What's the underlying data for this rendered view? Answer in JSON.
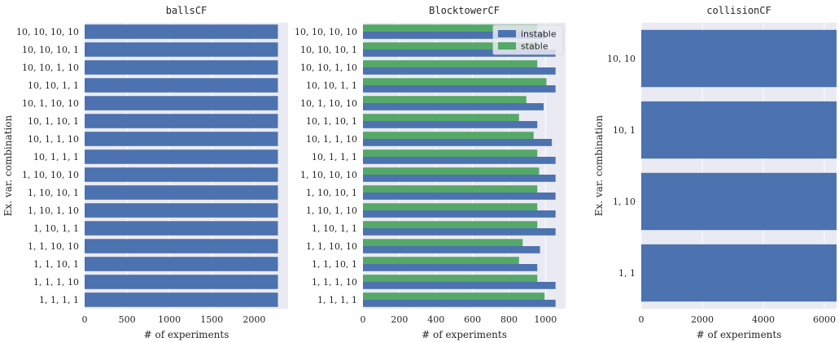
{
  "chart_data": [
    {
      "type": "bar",
      "orientation": "horizontal",
      "title": "ballsCF",
      "xlabel": "# of experiments",
      "ylabel": "Ex. var. combination",
      "categories": [
        "10, 10, 10, 10",
        "10, 10, 10, 1",
        "10, 10, 1, 10",
        "10, 10, 1, 1",
        "10, 1, 10, 10",
        "10, 1, 10, 1",
        "10, 1, 1, 10",
        "10, 1, 1, 1",
        "1, 10, 10, 10",
        "1, 10, 10, 1",
        "1, 10, 1, 10",
        "1, 10, 1, 1",
        "1, 1, 10, 10",
        "1, 1, 10, 1",
        "1, 1, 1, 10",
        "1, 1, 1, 1"
      ],
      "series": [
        {
          "values": [
            2280,
            2280,
            2280,
            2280,
            2280,
            2280,
            2280,
            2280,
            2280,
            2280,
            2280,
            2280,
            2280,
            2280,
            2280,
            2280
          ],
          "color": "#4c72b0"
        }
      ],
      "xticks": [
        0,
        500,
        1000,
        1500,
        2000
      ],
      "xlim": [
        0,
        2400
      ],
      "grid": true
    },
    {
      "type": "bar",
      "orientation": "horizontal",
      "title": "BlocktowerCF",
      "xlabel": "# of experiments",
      "ylabel": "",
      "categories": [
        "10, 10, 10, 10",
        "10, 10, 10, 1",
        "10, 10, 1, 10",
        "10, 10, 1, 1",
        "10, 1, 10, 10",
        "10, 1, 10, 1",
        "10, 1, 1, 10",
        "10, 1, 1, 1",
        "1, 10, 10, 10",
        "1, 10, 10, 1",
        "1, 10, 1, 10",
        "1, 10, 1, 1",
        "1, 1, 10, 10",
        "1, 1, 10, 1",
        "1, 1, 1, 10",
        "1, 1, 1, 1"
      ],
      "series": [
        {
          "name": "instable",
          "color": "#4c72b0",
          "values": [
            1000,
            1055,
            1055,
            1055,
            990,
            955,
            1035,
            1055,
            1055,
            1055,
            1055,
            1055,
            970,
            955,
            1055,
            1055
          ]
        },
        {
          "name": "stable",
          "color": "#55a868",
          "values": [
            955,
            955,
            955,
            1005,
            895,
            855,
            935,
            955,
            965,
            955,
            955,
            955,
            875,
            855,
            955,
            995
          ]
        }
      ],
      "xticks": [
        0,
        200,
        400,
        600,
        800,
        1000
      ],
      "xlim": [
        0,
        1110
      ],
      "legend": "top-right",
      "grid": true
    },
    {
      "type": "bar",
      "orientation": "horizontal",
      "title": "collisionCF",
      "xlabel": "# of experiments",
      "ylabel": "Ex. var. combination",
      "categories": [
        "10, 10",
        "10, 1",
        "1, 10",
        "1, 1"
      ],
      "series": [
        {
          "values": [
            6400,
            6400,
            6400,
            6400
          ],
          "color": "#4c72b0"
        }
      ],
      "xticks": [
        0,
        2000,
        4000,
        6000
      ],
      "xlim": [
        0,
        6400
      ],
      "grid": true
    }
  ]
}
